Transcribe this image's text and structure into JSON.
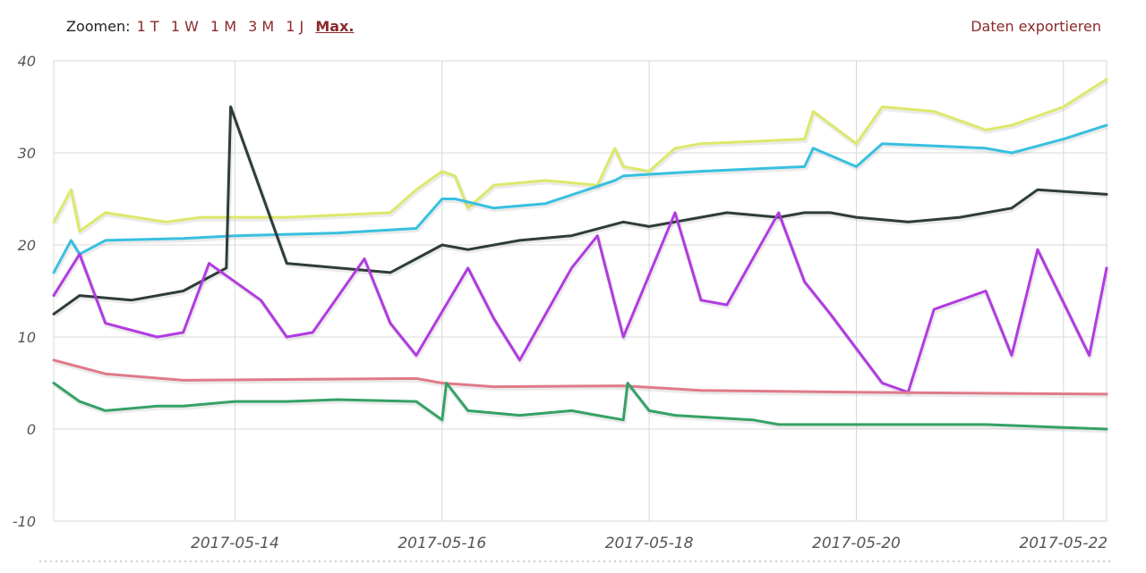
{
  "toolbar": {
    "zoom_label": "Zoomen:",
    "zoom_options": [
      "1 T",
      "1 W",
      "1 M",
      "3 M",
      "1 J",
      "Max."
    ],
    "active_zoom": "Max.",
    "export_label": "Daten exportieren"
  },
  "colors": {
    "series": [
      "#dde86a",
      "#38c0df",
      "#2e3d3a",
      "#b13be0",
      "#e07a8a",
      "#35a265"
    ],
    "grid": "#d9d9d9",
    "accent": "#8b2a2a"
  },
  "chart_data": {
    "type": "line",
    "title": "",
    "xlabel": "",
    "ylabel": "",
    "ylim": [
      -10,
      40
    ],
    "yticks": [
      "40",
      "30",
      "20",
      "10",
      "0",
      "-10"
    ],
    "xlim": [
      "2017-05-12 06:00",
      "2017-05-22 10:00"
    ],
    "xticks": [
      "2017-05-14",
      "2017-05-16",
      "2017-05-18",
      "2017-05-20",
      "2017-05-22"
    ],
    "grid": true,
    "legend": "none",
    "series": [
      {
        "x": [
          "2017-05-12 06:00",
          "2017-05-12 10:00",
          "2017-05-12 12:00",
          "2017-05-12 18:00",
          "2017-05-13 08:00",
          "2017-05-13 16:00",
          "2017-05-14 12:00",
          "2017-05-15 12:00",
          "2017-05-15 18:00",
          "2017-05-16 00:00",
          "2017-05-16 03:00",
          "2017-05-16 06:00",
          "2017-05-16 12:00",
          "2017-05-17 00:00",
          "2017-05-17 12:00",
          "2017-05-17 16:00",
          "2017-05-17 18:00",
          "2017-05-18 00:00",
          "2017-05-18 06:00",
          "2017-05-18 12:00",
          "2017-05-19 12:00",
          "2017-05-19 14:00",
          "2017-05-20 00:00",
          "2017-05-20 06:00",
          "2017-05-20 18:00",
          "2017-05-21 06:00",
          "2017-05-21 12:00",
          "2017-05-22 00:00",
          "2017-05-22 10:00"
        ],
        "values": [
          22.5,
          26,
          21.5,
          23.5,
          22.5,
          23,
          23,
          23.5,
          26,
          28,
          27.5,
          24,
          26.5,
          27,
          26.5,
          30.5,
          28.5,
          28,
          30.5,
          31,
          31.5,
          34.5,
          31,
          35,
          34.5,
          32.5,
          33,
          35,
          38
        ]
      },
      {
        "x": [
          "2017-05-12 06:00",
          "2017-05-12 10:00",
          "2017-05-12 12:00",
          "2017-05-12 18:00",
          "2017-05-13 12:00",
          "2017-05-14 00:00",
          "2017-05-15 00:00",
          "2017-05-15 18:00",
          "2017-05-16 00:00",
          "2017-05-16 03:00",
          "2017-05-16 12:00",
          "2017-05-17 00:00",
          "2017-05-17 16:00",
          "2017-05-17 18:00",
          "2017-05-18 12:00",
          "2017-05-19 12:00",
          "2017-05-19 14:00",
          "2017-05-20 00:00",
          "2017-05-20 06:00",
          "2017-05-21 06:00",
          "2017-05-21 12:00",
          "2017-05-22 00:00",
          "2017-05-22 10:00"
        ],
        "values": [
          17,
          20.5,
          19,
          20.5,
          20.7,
          21,
          21.3,
          21.8,
          25,
          25,
          24,
          24.5,
          27,
          27.5,
          28,
          28.5,
          30.5,
          28.5,
          31,
          30.5,
          30,
          31.5,
          33
        ]
      },
      {
        "x": [
          "2017-05-12 06:00",
          "2017-05-12 12:00",
          "2017-05-13 00:00",
          "2017-05-13 12:00",
          "2017-05-13 22:00",
          "2017-05-13 23:00",
          "2017-05-14 12:00",
          "2017-05-15 00:00",
          "2017-05-15 12:00",
          "2017-05-15 18:00",
          "2017-05-16 00:00",
          "2017-05-16 06:00",
          "2017-05-16 18:00",
          "2017-05-17 06:00",
          "2017-05-17 18:00",
          "2017-05-18 00:00",
          "2017-05-18 18:00",
          "2017-05-19 06:00",
          "2017-05-19 12:00",
          "2017-05-19 18:00",
          "2017-05-20 00:00",
          "2017-05-20 12:00",
          "2017-05-21 00:00",
          "2017-05-21 12:00",
          "2017-05-21 18:00",
          "2017-05-22 10:00"
        ],
        "values": [
          12.5,
          14.5,
          14,
          15,
          17.5,
          35,
          18,
          17.5,
          17,
          18.5,
          20,
          19.5,
          20.5,
          21,
          22.5,
          22,
          23.5,
          23,
          23.5,
          23.5,
          23,
          22.5,
          23,
          24,
          26,
          25.5
        ]
      },
      {
        "x": [
          "2017-05-12 06:00",
          "2017-05-12 12:00",
          "2017-05-12 18:00",
          "2017-05-13 06:00",
          "2017-05-13 12:00",
          "2017-05-13 18:00",
          "2017-05-14 06:00",
          "2017-05-14 12:00",
          "2017-05-14 18:00",
          "2017-05-15 06:00",
          "2017-05-15 12:00",
          "2017-05-15 18:00",
          "2017-05-16 06:00",
          "2017-05-16 12:00",
          "2017-05-16 18:00",
          "2017-05-17 06:00",
          "2017-05-17 12:00",
          "2017-05-17 18:00",
          "2017-05-18 06:00",
          "2017-05-18 12:00",
          "2017-05-18 18:00",
          "2017-05-19 06:00",
          "2017-05-19 12:00",
          "2017-05-19 18:00",
          "2017-05-20 06:00",
          "2017-05-20 12:00",
          "2017-05-20 18:00",
          "2017-05-21 06:00",
          "2017-05-21 12:00",
          "2017-05-21 18:00",
          "2017-05-22 06:00",
          "2017-05-22 10:00"
        ],
        "values": [
          14.5,
          19,
          11.5,
          10,
          10.5,
          18,
          14,
          10,
          10.5,
          18.5,
          11.5,
          8,
          17.5,
          12,
          7.5,
          17.5,
          21,
          10,
          23.5,
          14,
          13.5,
          23.5,
          16,
          12.5,
          5,
          4,
          13,
          15,
          8,
          19.5,
          8,
          17.5
        ]
      },
      {
        "x": [
          "2017-05-12 06:00",
          "2017-05-12 18:00",
          "2017-05-13 12:00",
          "2017-05-15 18:00",
          "2017-05-16 00:00",
          "2017-05-16 12:00",
          "2017-05-17 18:00",
          "2017-05-18 12:00",
          "2017-05-20 00:00",
          "2017-05-22 10:00"
        ],
        "values": [
          7.5,
          6,
          5.3,
          5.5,
          5,
          4.6,
          4.7,
          4.2,
          4,
          3.8
        ]
      },
      {
        "x": [
          "2017-05-12 06:00",
          "2017-05-12 12:00",
          "2017-05-12 18:00",
          "2017-05-13 06:00",
          "2017-05-13 12:00",
          "2017-05-14 00:00",
          "2017-05-14 12:00",
          "2017-05-15 00:00",
          "2017-05-15 18:00",
          "2017-05-16 00:00",
          "2017-05-16 01:00",
          "2017-05-16 06:00",
          "2017-05-16 18:00",
          "2017-05-17 06:00",
          "2017-05-17 12:00",
          "2017-05-17 18:00",
          "2017-05-17 19:00",
          "2017-05-18 00:00",
          "2017-05-18 06:00",
          "2017-05-19 00:00",
          "2017-05-19 06:00",
          "2017-05-20 06:00",
          "2017-05-21 06:00",
          "2017-05-22 10:00"
        ],
        "values": [
          5,
          3,
          2,
          2.5,
          2.5,
          3,
          3,
          3.2,
          3,
          1,
          5,
          2,
          1.5,
          2,
          1.5,
          1,
          5,
          2,
          1.5,
          1,
          0.5,
          0.5,
          0.5,
          0
        ]
      }
    ]
  }
}
